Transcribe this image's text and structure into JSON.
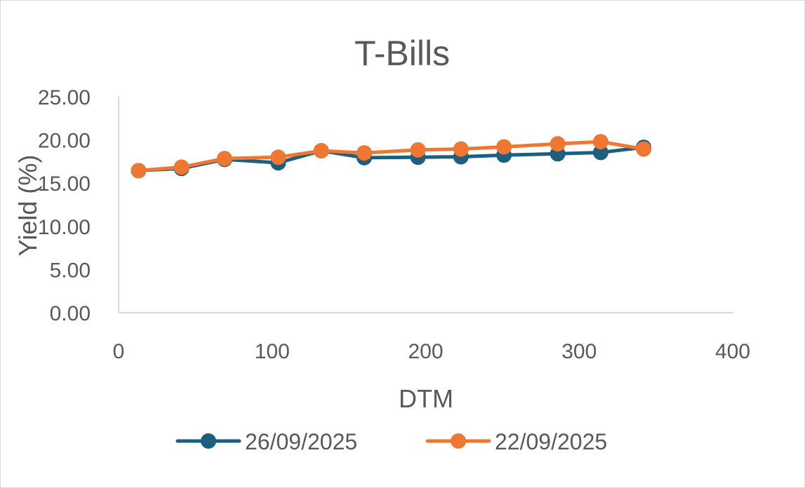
{
  "chart_data": {
    "type": "scatter",
    "title": "T-Bills",
    "xlabel": "DTM",
    "ylabel": "Yield (%)",
    "xlim": [
      0,
      400
    ],
    "ylim": [
      0,
      25
    ],
    "xticks": [
      0,
      100,
      200,
      300,
      400
    ],
    "yticks": [
      0,
      5,
      10,
      15,
      20,
      25
    ],
    "xtick_labels": [
      "0",
      "100",
      "200",
      "300",
      "400"
    ],
    "ytick_labels": [
      "0.00",
      "5.00",
      "10.00",
      "15.00",
      "20.00",
      "25.00"
    ],
    "grid": false,
    "mode": "lines+markers",
    "legend_position": "bottom",
    "series": [
      {
        "name": "26/09/2025",
        "color": "#1d5f7e",
        "x": [
          13,
          41,
          69,
          104,
          132,
          160,
          195,
          223,
          251,
          286,
          314,
          342
        ],
        "y": [
          16.45,
          16.7,
          17.75,
          17.35,
          18.75,
          17.95,
          18.0,
          18.05,
          18.25,
          18.4,
          18.55,
          19.15
        ]
      },
      {
        "name": "22/09/2025",
        "color": "#ee7734",
        "x": [
          13,
          41,
          69,
          104,
          132,
          160,
          195,
          223,
          251,
          286,
          314,
          342
        ],
        "y": [
          16.45,
          16.85,
          17.85,
          18.0,
          18.75,
          18.5,
          18.85,
          18.95,
          19.2,
          19.55,
          19.8,
          18.95
        ]
      }
    ]
  }
}
